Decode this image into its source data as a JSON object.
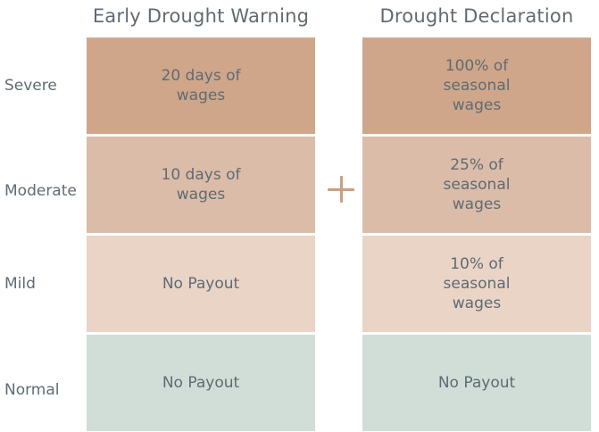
{
  "columns": {
    "early_warning": "Early Drought Warning",
    "declaration": "Drought Declaration"
  },
  "rows": [
    {
      "label": "Severe",
      "early_warning": "20 days of\nwages",
      "declaration": "100% of\nseasonal\nwages",
      "color": "#cfa68a"
    },
    {
      "label": "Moderate",
      "early_warning": "10 days of\nwages",
      "declaration": "25% of\nseasonal\nwages",
      "color": "#dbbca8"
    },
    {
      "label": "Mild",
      "early_warning": "No Payout",
      "declaration": "10% of\nseasonal\nwages",
      "color": "#e9d4c6"
    },
    {
      "label": "Normal",
      "early_warning": "No Payout",
      "declaration": "No Payout",
      "color": "#d0ded7"
    }
  ],
  "connector": {
    "icon": "plus-icon",
    "color": "#c9a083"
  }
}
